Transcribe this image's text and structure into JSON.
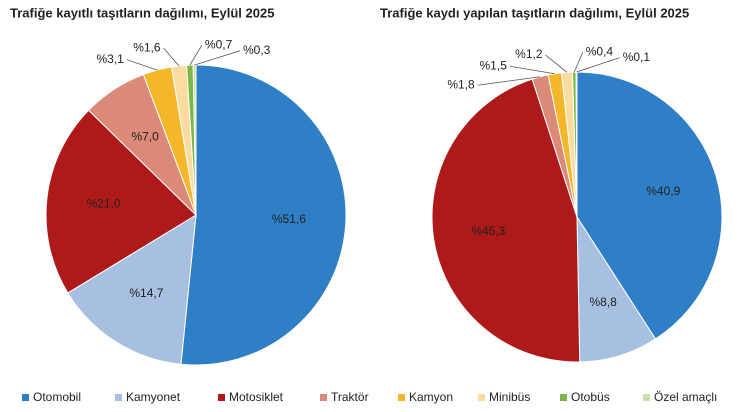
{
  "chart_data": [
    {
      "type": "pie",
      "title": "Trafiğe kayıtlı taşıtların dağılımı, Eylül 2025",
      "categories": [
        "Otomobil",
        "Kamyonet",
        "Motosiklet",
        "Traktör",
        "Kamyon",
        "Minibüs",
        "Otobüs",
        "Özel amaçlı"
      ],
      "colors": [
        "#2e7fc6",
        "#a7bfe0",
        "#ae1a1a",
        "#dc8a78",
        "#f5b72a",
        "#fbdca0",
        "#7ab648",
        "#c9dfa5"
      ],
      "values": [
        51.6,
        14.7,
        21.0,
        7.0,
        3.1,
        1.6,
        0.7,
        0.3
      ],
      "value_labels": [
        "%51,6",
        "%14,7",
        "%21,0",
        "%7,0",
        "%3,1",
        "%1,6",
        "%0,7",
        "%0,3"
      ]
    },
    {
      "type": "pie",
      "title": "Trafiğe kaydı yapılan taşıtların dağılımı, Eylül 2025",
      "categories": [
        "Otomobil",
        "Kamyonet",
        "Motosiklet",
        "Traktör",
        "Kamyon",
        "Minibüs",
        "Otobüs",
        "Özel amaçlı"
      ],
      "colors": [
        "#2e7fc6",
        "#a7bfe0",
        "#ae1a1a",
        "#dc8a78",
        "#f5b72a",
        "#fbdca0",
        "#7ab648",
        "#c9dfa5"
      ],
      "values": [
        40.9,
        8.8,
        45.3,
        1.8,
        1.5,
        1.2,
        0.4,
        0.1
      ],
      "value_labels": [
        "%40,9",
        "%8,8",
        "%45,3",
        "%1,8",
        "%1,5",
        "%1,2",
        "%0,4",
        "%0,1"
      ]
    }
  ]
}
